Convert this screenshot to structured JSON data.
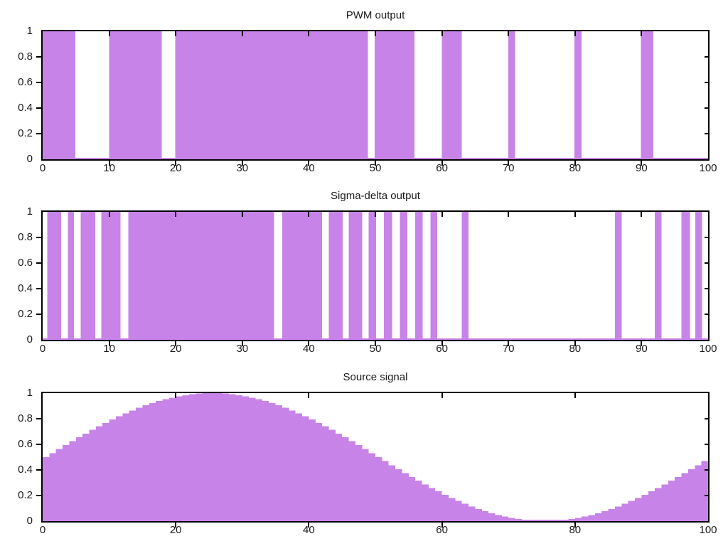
{
  "figure": {
    "background_color": "#ffffff",
    "fill_color": "#c883e8",
    "border_color": "#000000",
    "text_color": "#1a1a1a"
  },
  "chart_data": [
    {
      "type": "area",
      "title": "PWM output",
      "x_range": [
        0,
        100
      ],
      "y_range": [
        0,
        1
      ],
      "grid": false,
      "legend": "none",
      "xticks": {
        "values": [
          0,
          10,
          20,
          30,
          40,
          50,
          60,
          70,
          80,
          90,
          100
        ],
        "labels": [
          "0",
          "10",
          "20",
          "30",
          "40",
          "50",
          "60",
          "70",
          "80",
          "90",
          "100"
        ]
      },
      "yticks": {
        "values": [
          0,
          0.2,
          0.4,
          0.6,
          0.8,
          1
        ],
        "labels": [
          "0",
          "0.2",
          "0.4",
          "0.6",
          "0.8",
          "1"
        ]
      },
      "baseline_y": 0,
      "pulse_level": 1,
      "pulses": [
        [
          0,
          4.9
        ],
        [
          10.0,
          17.9
        ],
        [
          19.9,
          48.9
        ],
        [
          49.9,
          55.9
        ],
        [
          60.0,
          63.0
        ],
        [
          70.0,
          71.0
        ],
        [
          79.9,
          81.0
        ],
        [
          89.9,
          91.8
        ]
      ]
    },
    {
      "type": "area",
      "title": "Sigma-delta output",
      "x_range": [
        0,
        100
      ],
      "y_range": [
        0,
        1
      ],
      "grid": false,
      "legend": "none",
      "xticks": {
        "values": [
          0,
          10,
          20,
          30,
          40,
          50,
          60,
          70,
          80,
          90,
          100
        ],
        "labels": [
          "0",
          "10",
          "20",
          "30",
          "40",
          "50",
          "60",
          "70",
          "80",
          "90",
          "100"
        ]
      },
      "yticks": {
        "values": [
          0,
          0.2,
          0.4,
          0.6,
          0.8,
          1
        ],
        "labels": [
          "0",
          "0.2",
          "0.4",
          "0.6",
          "0.8",
          "1"
        ]
      },
      "baseline_y": 0,
      "pulse_level": 1,
      "pulses": [
        [
          0.7,
          2.8
        ],
        [
          3.8,
          4.7
        ],
        [
          5.7,
          7.9
        ],
        [
          8.8,
          11.7
        ],
        [
          12.9,
          34.8
        ],
        [
          36.0,
          42.0
        ],
        [
          43.0,
          45.1
        ],
        [
          46.0,
          48.0
        ],
        [
          49.0,
          50.1
        ],
        [
          51.3,
          52.5
        ],
        [
          53.7,
          54.8
        ],
        [
          56.0,
          57.1
        ],
        [
          58.3,
          59.3
        ],
        [
          63.0,
          64.0
        ],
        [
          86.0,
          87.0
        ],
        [
          92.0,
          93.0
        ],
        [
          96.0,
          97.3
        ],
        [
          98.1,
          99.1
        ]
      ]
    },
    {
      "type": "bar",
      "title": "Source signal",
      "x_range": [
        0,
        100
      ],
      "y_range": [
        0,
        1
      ],
      "grid": false,
      "legend": "none",
      "xticks": {
        "values": [
          0,
          20,
          40,
          60,
          80,
          100
        ],
        "labels": [
          "0",
          "20",
          "40",
          "60",
          "80",
          "100"
        ]
      },
      "yticks": {
        "values": [
          0,
          0.2,
          0.4,
          0.6,
          0.8,
          1
        ],
        "labels": [
          "0",
          "0.2",
          "0.4",
          "0.6",
          "0.8",
          "1"
        ]
      },
      "baseline_y": 0,
      "bar_width": 1,
      "x": [
        0,
        1,
        2,
        3,
        4,
        5,
        6,
        7,
        8,
        9,
        10,
        11,
        12,
        13,
        14,
        15,
        16,
        17,
        18,
        19,
        20,
        21,
        22,
        23,
        24,
        25,
        26,
        27,
        28,
        29,
        30,
        31,
        32,
        33,
        34,
        35,
        36,
        37,
        38,
        39,
        40,
        41,
        42,
        43,
        44,
        45,
        46,
        47,
        48,
        49,
        50,
        51,
        52,
        53,
        54,
        55,
        56,
        57,
        58,
        59,
        60,
        61,
        62,
        63,
        64,
        65,
        66,
        67,
        68,
        69,
        70,
        71,
        72,
        73,
        74,
        75,
        76,
        77,
        78,
        79,
        80,
        81,
        82,
        83,
        84,
        85,
        86,
        87,
        88,
        89,
        90,
        91,
        92,
        93,
        94,
        95,
        96,
        97,
        98,
        99,
        100
      ],
      "values": [
        0.5,
        0.531,
        0.563,
        0.594,
        0.624,
        0.655,
        0.684,
        0.713,
        0.741,
        0.768,
        0.794,
        0.819,
        0.842,
        0.864,
        0.885,
        0.905,
        0.922,
        0.938,
        0.952,
        0.965,
        0.976,
        0.984,
        0.991,
        0.996,
        0.999,
        1.0,
        0.999,
        0.996,
        0.991,
        0.984,
        0.976,
        0.965,
        0.952,
        0.938,
        0.922,
        0.905,
        0.885,
        0.864,
        0.842,
        0.819,
        0.794,
        0.768,
        0.741,
        0.713,
        0.684,
        0.655,
        0.624,
        0.594,
        0.563,
        0.531,
        0.5,
        0.469,
        0.437,
        0.406,
        0.376,
        0.345,
        0.316,
        0.287,
        0.259,
        0.232,
        0.206,
        0.181,
        0.158,
        0.136,
        0.115,
        0.095,
        0.078,
        0.062,
        0.048,
        0.035,
        0.024,
        0.016,
        0.009,
        0.004,
        0.001,
        0.0,
        0.001,
        0.004,
        0.009,
        0.016,
        0.024,
        0.035,
        0.048,
        0.062,
        0.078,
        0.095,
        0.115,
        0.136,
        0.158,
        0.181,
        0.206,
        0.232,
        0.259,
        0.287,
        0.316,
        0.345,
        0.376,
        0.406,
        0.437,
        0.469,
        0.5
      ]
    }
  ]
}
